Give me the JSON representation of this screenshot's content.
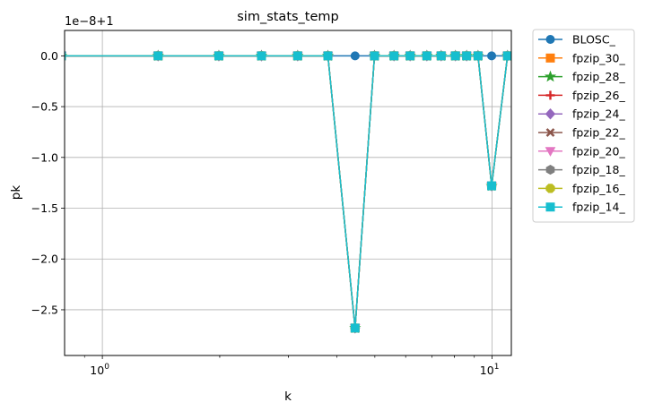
{
  "chart_data": {
    "type": "line",
    "title": "sim_stats_temp",
    "xlabel": "k",
    "ylabel": "pk",
    "x_scale": "log",
    "xlim": [
      0.8,
      11.2
    ],
    "ylim": [
      -2.95,
      0.25
    ],
    "y_offset_label": "1e−8+1",
    "grid": true,
    "legend_position": "outside-right",
    "x_ticks": [
      {
        "value": 1,
        "base": "10",
        "exp": "0"
      },
      {
        "value": 10,
        "base": "10",
        "exp": "1"
      }
    ],
    "y_ticks": [
      {
        "value": 0,
        "label": "0.0"
      },
      {
        "value": -0.5,
        "label": "−0.5"
      },
      {
        "value": -1,
        "label": "−1.0"
      },
      {
        "value": -1.5,
        "label": "−1.5"
      },
      {
        "value": -2,
        "label": "−2.0"
      },
      {
        "value": -2.5,
        "label": "−2.5"
      }
    ],
    "x": [
      0.785,
      1.39,
      1.99,
      2.56,
      3.17,
      3.79,
      4.45,
      4.99,
      5.6,
      6.16,
      6.8,
      7.4,
      8.05,
      8.6,
      9.2,
      9.97,
      10.95
    ],
    "series": [
      {
        "name": "BLOSC_",
        "color": "#1f77b4",
        "marker": "circle",
        "values": [
          0,
          0,
          0,
          0,
          0,
          0,
          0,
          0,
          0,
          0,
          0,
          0,
          0,
          0,
          0,
          0,
          0
        ]
      },
      {
        "name": "fpzip_30_",
        "color": "#ff7f0e",
        "marker": "square",
        "values": [
          0,
          0,
          0,
          0,
          0,
          0,
          -2.68,
          0,
          0,
          0,
          0,
          0,
          0,
          0,
          0,
          -1.28,
          0
        ]
      },
      {
        "name": "fpzip_28_",
        "color": "#2ca02c",
        "marker": "star",
        "values": [
          0,
          0,
          0,
          0,
          0,
          0,
          -2.68,
          0,
          0,
          0,
          0,
          0,
          0,
          0,
          0,
          -1.28,
          0
        ]
      },
      {
        "name": "fpzip_26_",
        "color": "#d62728",
        "marker": "plus",
        "values": [
          0,
          0,
          0,
          0,
          0,
          0,
          -2.68,
          0,
          0,
          0,
          0,
          0,
          0,
          0,
          0,
          -1.28,
          0
        ]
      },
      {
        "name": "fpzip_24_",
        "color": "#9467bd",
        "marker": "diamond",
        "values": [
          0,
          0,
          0,
          0,
          0,
          0,
          -2.68,
          0,
          0,
          0,
          0,
          0,
          0,
          0,
          0,
          -1.28,
          0
        ]
      },
      {
        "name": "fpzip_22_",
        "color": "#8c564b",
        "marker": "x",
        "values": [
          0,
          0,
          0,
          0,
          0,
          0,
          -2.68,
          0,
          0,
          0,
          0,
          0,
          0,
          0,
          0,
          -1.28,
          0
        ]
      },
      {
        "name": "fpzip_20_",
        "color": "#e377c2",
        "marker": "triangle-down",
        "values": [
          0,
          0,
          0,
          0,
          0,
          0,
          -2.68,
          0,
          0,
          0,
          0,
          0,
          0,
          0,
          0,
          -1.28,
          0
        ]
      },
      {
        "name": "fpzip_18_",
        "color": "#7f7f7f",
        "marker": "hexagon",
        "values": [
          0,
          0,
          0,
          0,
          0,
          0,
          -2.68,
          0,
          0,
          0,
          0,
          0,
          0,
          0,
          0,
          -1.28,
          0
        ]
      },
      {
        "name": "fpzip_16_",
        "color": "#bcbd22",
        "marker": "octagon",
        "values": [
          0,
          0,
          0,
          0,
          0,
          0,
          -2.68,
          0,
          0,
          0,
          0,
          0,
          0,
          0,
          0,
          -1.28,
          0
        ]
      },
      {
        "name": "fpzip_14_",
        "color": "#17becf",
        "marker": "square",
        "values": [
          0,
          0,
          0,
          0,
          0,
          0,
          -2.68,
          0,
          0,
          0,
          0,
          0,
          0,
          0,
          0,
          -1.28,
          0
        ]
      }
    ]
  }
}
